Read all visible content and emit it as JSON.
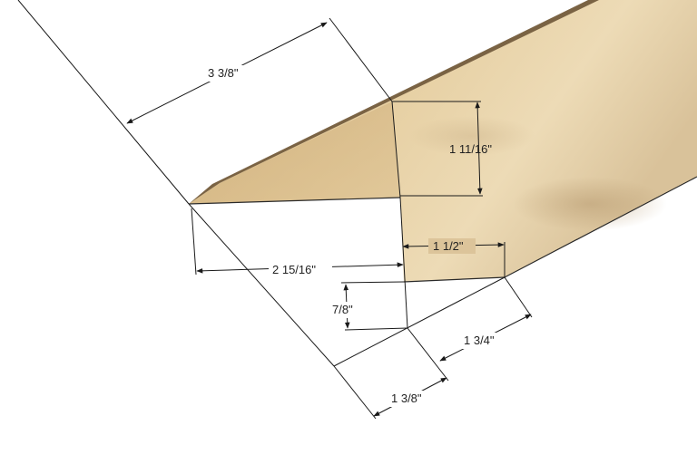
{
  "colors": {
    "wood_light": "#e8d2a6",
    "wood_mid": "#d4b582",
    "wood_dark": "#c29e68",
    "wood_edge": "#7a6344",
    "line": "#1a1a1a",
    "background": "#ffffff"
  },
  "dimensions": {
    "top_width": "3 3/8\"",
    "right_height": "1 11/16\"",
    "inner_width": "1 1/2\"",
    "bottom_left_width": "2 15/16\"",
    "small_height": "7/8\"",
    "lower_right": "1 3/4\"",
    "bottom": "1 3/8\""
  }
}
